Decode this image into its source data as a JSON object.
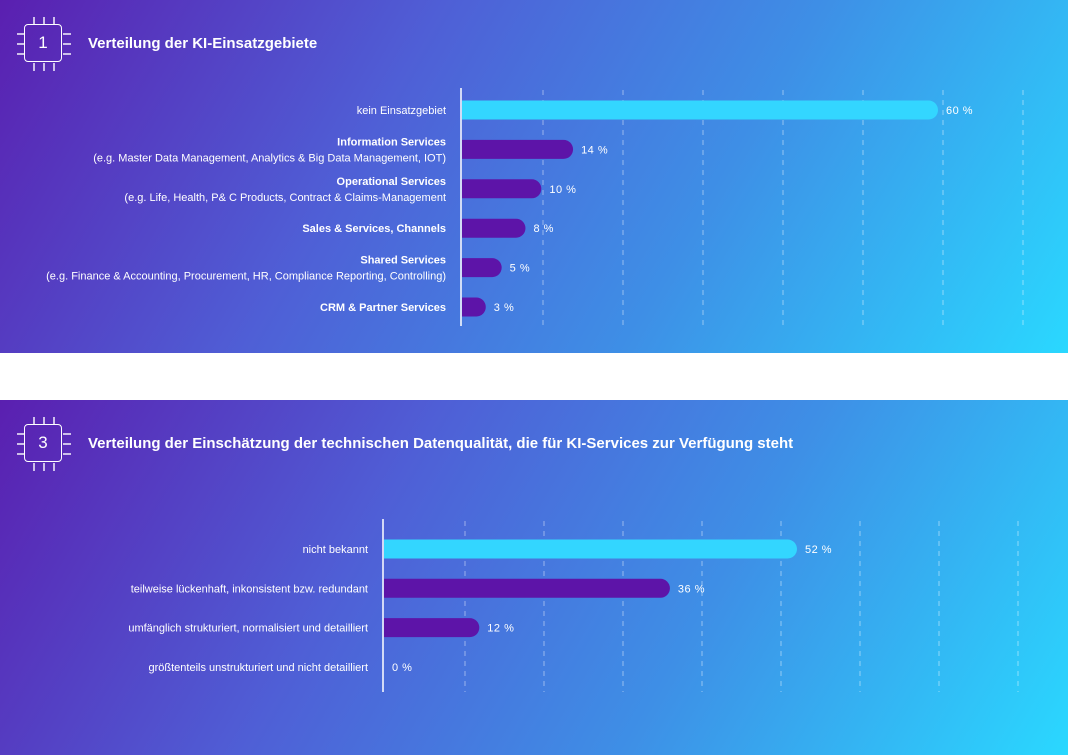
{
  "panels": [
    {
      "number": "1",
      "title": "Verteilung der KI-Einsatzgebiete"
    },
    {
      "number": "3",
      "title": "Verteilung der Einschätzung der technischen Datenqualität, die für KI-Services zur Verfügung steht"
    }
  ],
  "chart_data": [
    {
      "type": "bar",
      "orientation": "horizontal",
      "title": "Verteilung der KI-Einsatzgebiete",
      "categories": [
        {
          "label": "kein Einsatzgebiet",
          "sub": ""
        },
        {
          "label": "Information Services",
          "sub": "(e.g. Master Data Management, Analytics & Big Data Management, IOT)"
        },
        {
          "label": "Operational Services",
          "sub": "(e.g. Life, Health, P& C Products, Contract & Claims-Management"
        },
        {
          "label": "Sales & Services, Channels",
          "sub": ""
        },
        {
          "label": "Shared Services",
          "sub": "(e.g. Finance & Accounting, Procurement, HR, Compliance Reporting, Controlling)"
        },
        {
          "label": "CRM & Partner Services",
          "sub": ""
        }
      ],
      "values": [
        60,
        14,
        10,
        8,
        5,
        3
      ],
      "value_labels": [
        "60 %",
        "14 %",
        "10 %",
        "8 %",
        "5 %",
        "3 %"
      ],
      "bold_labels": [
        false,
        true,
        true,
        true,
        true,
        true
      ],
      "xlim": [
        0,
        60
      ],
      "grid": "vertical dashed",
      "colors": {
        "highlight": "#33d6ff",
        "bar": "#5d14a8"
      }
    },
    {
      "type": "bar",
      "orientation": "horizontal",
      "title": "Verteilung der Einschätzung der technischen Datenqualität, die für KI-Services zur Verfügung steht",
      "categories": [
        {
          "label": "nicht bekannt",
          "sub": ""
        },
        {
          "label": "teilweise lückenhaft, inkonsistent bzw. redundant",
          "sub": ""
        },
        {
          "label": "umfänglich strukturiert, normalisiert und detailliert",
          "sub": ""
        },
        {
          "label": "größtenteils unstrukturiert und nicht detailliert",
          "sub": ""
        }
      ],
      "values": [
        52,
        36,
        12,
        0
      ],
      "value_labels": [
        "52 %",
        "36 %",
        "12 %",
        "0 %"
      ],
      "bold_labels": [
        false,
        false,
        false,
        false
      ],
      "xlim": [
        0,
        52
      ],
      "grid": "vertical dashed",
      "colors": {
        "highlight": "#33d6ff",
        "bar": "#5d14a8"
      }
    }
  ]
}
